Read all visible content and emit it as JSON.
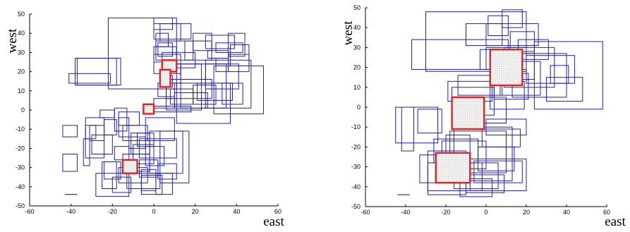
{
  "chart_data": [
    {
      "type": "rectangles",
      "xlabel": "east",
      "ylabel": "west",
      "xlim": [
        -60,
        60
      ],
      "ylim": [
        -50,
        50
      ],
      "xticks": [
        -60,
        -40,
        -20,
        0,
        20,
        40,
        60
      ],
      "yticks": [
        -50,
        -40,
        -30,
        -20,
        -10,
        0,
        10,
        20,
        30,
        40,
        50
      ],
      "grid": false,
      "colors": {
        "query_rectangles": "#1f1fb8",
        "highlighted_rectangles": "#e32222"
      },
      "blue_rectangles": [
        [
          -22,
          11,
          11,
          48
        ],
        [
          -37,
          -16,
          13,
          27
        ],
        [
          -44,
          -37,
          -14,
          -8
        ],
        [
          -44,
          -37,
          -32,
          -23
        ],
        [
          -34,
          -31,
          -29,
          -15
        ],
        [
          -30,
          -20,
          -23,
          -13
        ],
        [
          -33,
          -28,
          -15,
          -8
        ],
        [
          -33,
          -24,
          -25,
          -4
        ],
        [
          -31,
          -24,
          -16,
          -8
        ],
        [
          -26,
          -19,
          -4,
          0
        ],
        [
          -24,
          -18,
          -13,
          -5
        ],
        [
          -19,
          -12,
          -26,
          -19
        ],
        [
          -19,
          -13,
          -11,
          1
        ],
        [
          -17,
          -12,
          -14,
          -4
        ],
        [
          -17,
          -7,
          -8,
          -1
        ],
        [
          -15,
          -3,
          -16,
          -8
        ],
        [
          -12,
          -4,
          -20,
          -14
        ],
        [
          -11,
          -2,
          -23,
          -12
        ],
        [
          -10,
          0,
          -28,
          -18
        ],
        [
          -8,
          0,
          -19,
          -12
        ],
        [
          -7,
          2,
          -35,
          -26
        ],
        [
          -4,
          5,
          -29,
          -19
        ],
        [
          -6,
          1,
          -42,
          -31
        ],
        [
          -6,
          4,
          -44,
          -34
        ],
        [
          -13,
          3,
          -41,
          -33
        ],
        [
          -17,
          -3,
          -38,
          -30
        ],
        [
          -25,
          -18,
          -41,
          -27
        ],
        [
          -28,
          -12,
          -45,
          -33
        ],
        [
          -20,
          -11,
          -43,
          -35
        ],
        [
          -24,
          -16,
          -36,
          -27
        ],
        [
          -15,
          -2,
          -32,
          -23
        ],
        [
          -7,
          11,
          -25,
          -15
        ],
        [
          -4,
          10,
          -16,
          -4
        ],
        [
          -2,
          14,
          -33,
          -11
        ],
        [
          1,
          9,
          -44,
          -33
        ],
        [
          2,
          11,
          -36,
          -28
        ],
        [
          3,
          17,
          -38,
          -11
        ],
        [
          -2,
          18,
          -1,
          2
        ],
        [
          0,
          10,
          1,
          6
        ],
        [
          2,
          10,
          7,
          14
        ],
        [
          3,
          9,
          12,
          18
        ],
        [
          5,
          13,
          14,
          24
        ],
        [
          0,
          13,
          19,
          29
        ],
        [
          0,
          11,
          25,
          33
        ],
        [
          2,
          9,
          28,
          35
        ],
        [
          1,
          7,
          33,
          40
        ],
        [
          0,
          18,
          37,
          45
        ],
        [
          0,
          9,
          42,
          48
        ],
        [
          3,
          13,
          36,
          45
        ],
        [
          1,
          19,
          26,
          36
        ],
        [
          4,
          20,
          22,
          30
        ],
        [
          6,
          23,
          0,
          24
        ],
        [
          6,
          28,
          6,
          16
        ],
        [
          8,
          19,
          3,
          11
        ],
        [
          10,
          26,
          1,
          9
        ],
        [
          11,
          37,
          -7,
          14
        ],
        [
          13,
          35,
          1,
          24
        ],
        [
          15,
          28,
          26,
          36
        ],
        [
          19,
          30,
          3,
          13
        ],
        [
          21,
          38,
          5,
          14
        ],
        [
          25,
          47,
          1,
          26
        ],
        [
          25,
          41,
          11,
          24
        ],
        [
          29,
          53,
          -2,
          23
        ],
        [
          30,
          36,
          20,
          27
        ],
        [
          33,
          43,
          3,
          14
        ],
        [
          36,
          46,
          20,
          29
        ],
        [
          37,
          46,
          23,
          34
        ],
        [
          36,
          44,
          28,
          40
        ],
        [
          30,
          43,
          30,
          35
        ],
        [
          25,
          39,
          32,
          39
        ],
        [
          19,
          28,
          31,
          40
        ],
        [
          26,
          36,
          27,
          31
        ],
        [
          -38,
          -18,
          13,
          27
        ],
        [
          -41,
          -21,
          14,
          19
        ]
      ],
      "red_rectangles": [
        [
          4,
          11,
          20,
          26
        ],
        [
          3,
          8,
          12,
          21
        ],
        [
          -5,
          0,
          -2,
          3
        ],
        [
          -15,
          -8,
          -33,
          -26
        ]
      ],
      "markers": [
        {
          "x1": -43,
          "x2": -37,
          "y": -44
        }
      ]
    },
    {
      "type": "rectangles",
      "xlabel": "east",
      "ylabel": "west",
      "xlim": [
        -60,
        60
      ],
      "ylim": [
        -50,
        50
      ],
      "xticks": [
        -60,
        -40,
        -20,
        0,
        20,
        40,
        60
      ],
      "yticks": [
        -50,
        -40,
        -30,
        -20,
        -10,
        0,
        10,
        20,
        30,
        40,
        50
      ],
      "grid": false,
      "colors": {
        "query_rectangles": "#1f1fb8",
        "highlighted_rectangles": "#e32222"
      },
      "blue_rectangles": [
        [
          -30,
          20,
          18,
          48
        ],
        [
          -37,
          11,
          19,
          34
        ],
        [
          -45,
          -24,
          -18,
          0
        ],
        [
          -42,
          -36,
          -22,
          0
        ],
        [
          -34,
          -22,
          -13,
          -1
        ],
        [
          -26,
          -4,
          -28,
          -16
        ],
        [
          -22,
          0,
          -31,
          -17
        ],
        [
          -20,
          -8,
          -25,
          -14
        ],
        [
          -18,
          10,
          -33,
          -12
        ],
        [
          -16,
          13,
          -37,
          -10
        ],
        [
          -29,
          -10,
          -44,
          -22
        ],
        [
          -33,
          -12,
          -38,
          -24
        ],
        [
          -29,
          -2,
          -42,
          -28
        ],
        [
          -16,
          6,
          -41,
          -28
        ],
        [
          -13,
          3,
          -45,
          -36
        ],
        [
          -10,
          9,
          -43,
          -34
        ],
        [
          -8,
          20,
          -42,
          -26
        ],
        [
          -6,
          18,
          -38,
          -27
        ],
        [
          -4,
          14,
          -32,
          -20
        ],
        [
          -2,
          17,
          -20,
          -11
        ],
        [
          0,
          20,
          -14,
          -6
        ],
        [
          -12,
          10,
          -8,
          5
        ],
        [
          -17,
          4,
          -4,
          10
        ],
        [
          -19,
          3,
          3,
          13
        ],
        [
          -14,
          8,
          6,
          16
        ],
        [
          2,
          19,
          -1,
          13
        ],
        [
          4,
          21,
          4,
          17
        ],
        [
          7,
          27,
          6,
          23
        ],
        [
          9,
          34,
          10,
          30
        ],
        [
          13,
          40,
          5,
          27
        ],
        [
          24,
          58,
          -1,
          33
        ],
        [
          30,
          48,
          3,
          15
        ],
        [
          32,
          41,
          12,
          21
        ],
        [
          20,
          44,
          12,
          26
        ],
        [
          16,
          31,
          24,
          34
        ],
        [
          12,
          24,
          28,
          38
        ],
        [
          0,
          26,
          31,
          42
        ],
        [
          1,
          11,
          36,
          46
        ],
        [
          8,
          18,
          40,
          49
        ],
        [
          0,
          20,
          19,
          30
        ],
        [
          3,
          24,
          14,
          27
        ],
        [
          -3,
          10,
          19,
          29
        ],
        [
          -10,
          8,
          31,
          42
        ]
      ],
      "red_rectangles": [
        [
          2,
          18,
          11,
          29
        ],
        [
          -17,
          -1,
          -11,
          5
        ],
        [
          -25,
          -8,
          -38,
          -23
        ]
      ],
      "markers": [
        {
          "x1": -44,
          "x2": -38,
          "y": -44
        }
      ]
    }
  ]
}
